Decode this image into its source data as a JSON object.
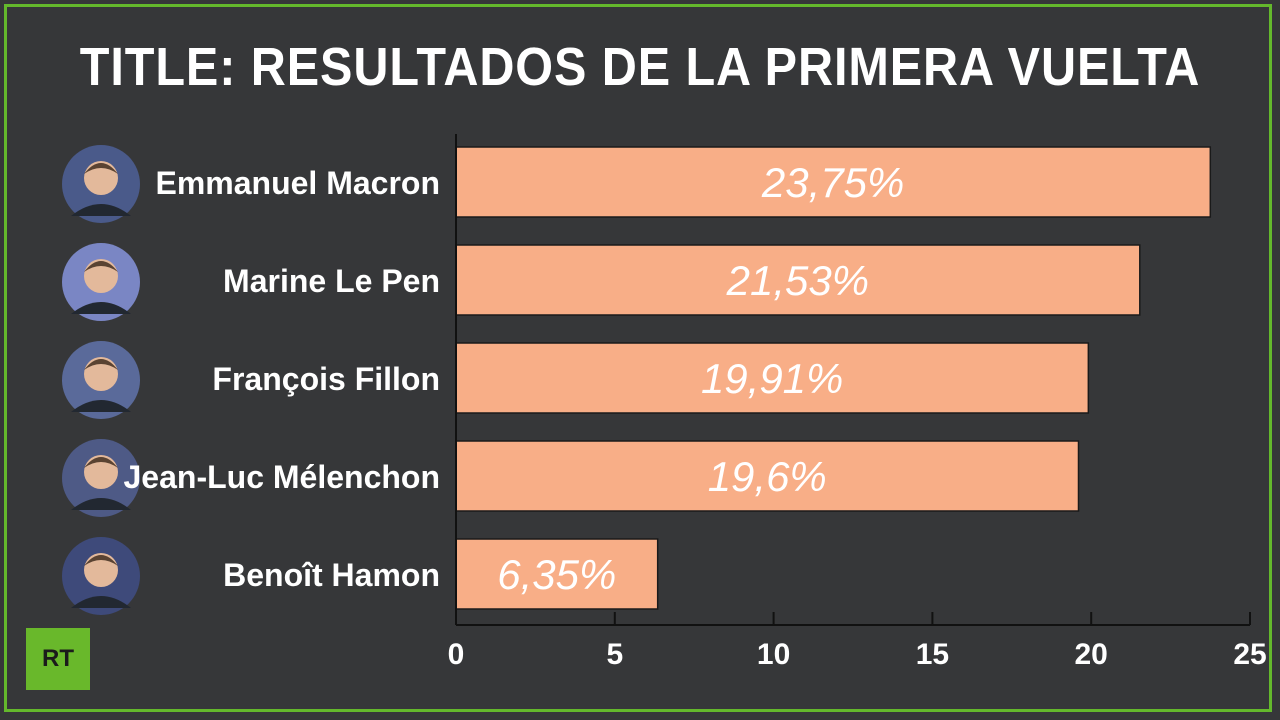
{
  "title": "TITLE: RESULTADOS DE LA PRIMERA VUELTA",
  "logo_text": "RT",
  "colors": {
    "background": "#363739",
    "border": "#64b82c",
    "bar": "#f8ae87",
    "logo": "#69b82b"
  },
  "chart_data": {
    "type": "bar",
    "orientation": "horizontal",
    "categories": [
      "Emmanuel Macron",
      "Marine Le Pen",
      "François Fillon",
      "Jean-Luc Mélenchon",
      "Benoît Hamon"
    ],
    "values": [
      23.75,
      21.53,
      19.91,
      19.6,
      6.35
    ],
    "value_labels": [
      "23,75%",
      "21,53%",
      "19,91%",
      "19,6%",
      "6,35%"
    ],
    "xlim": [
      0,
      25
    ],
    "x_ticks": [
      0,
      5,
      10,
      15,
      20,
      25
    ],
    "grid": false
  }
}
